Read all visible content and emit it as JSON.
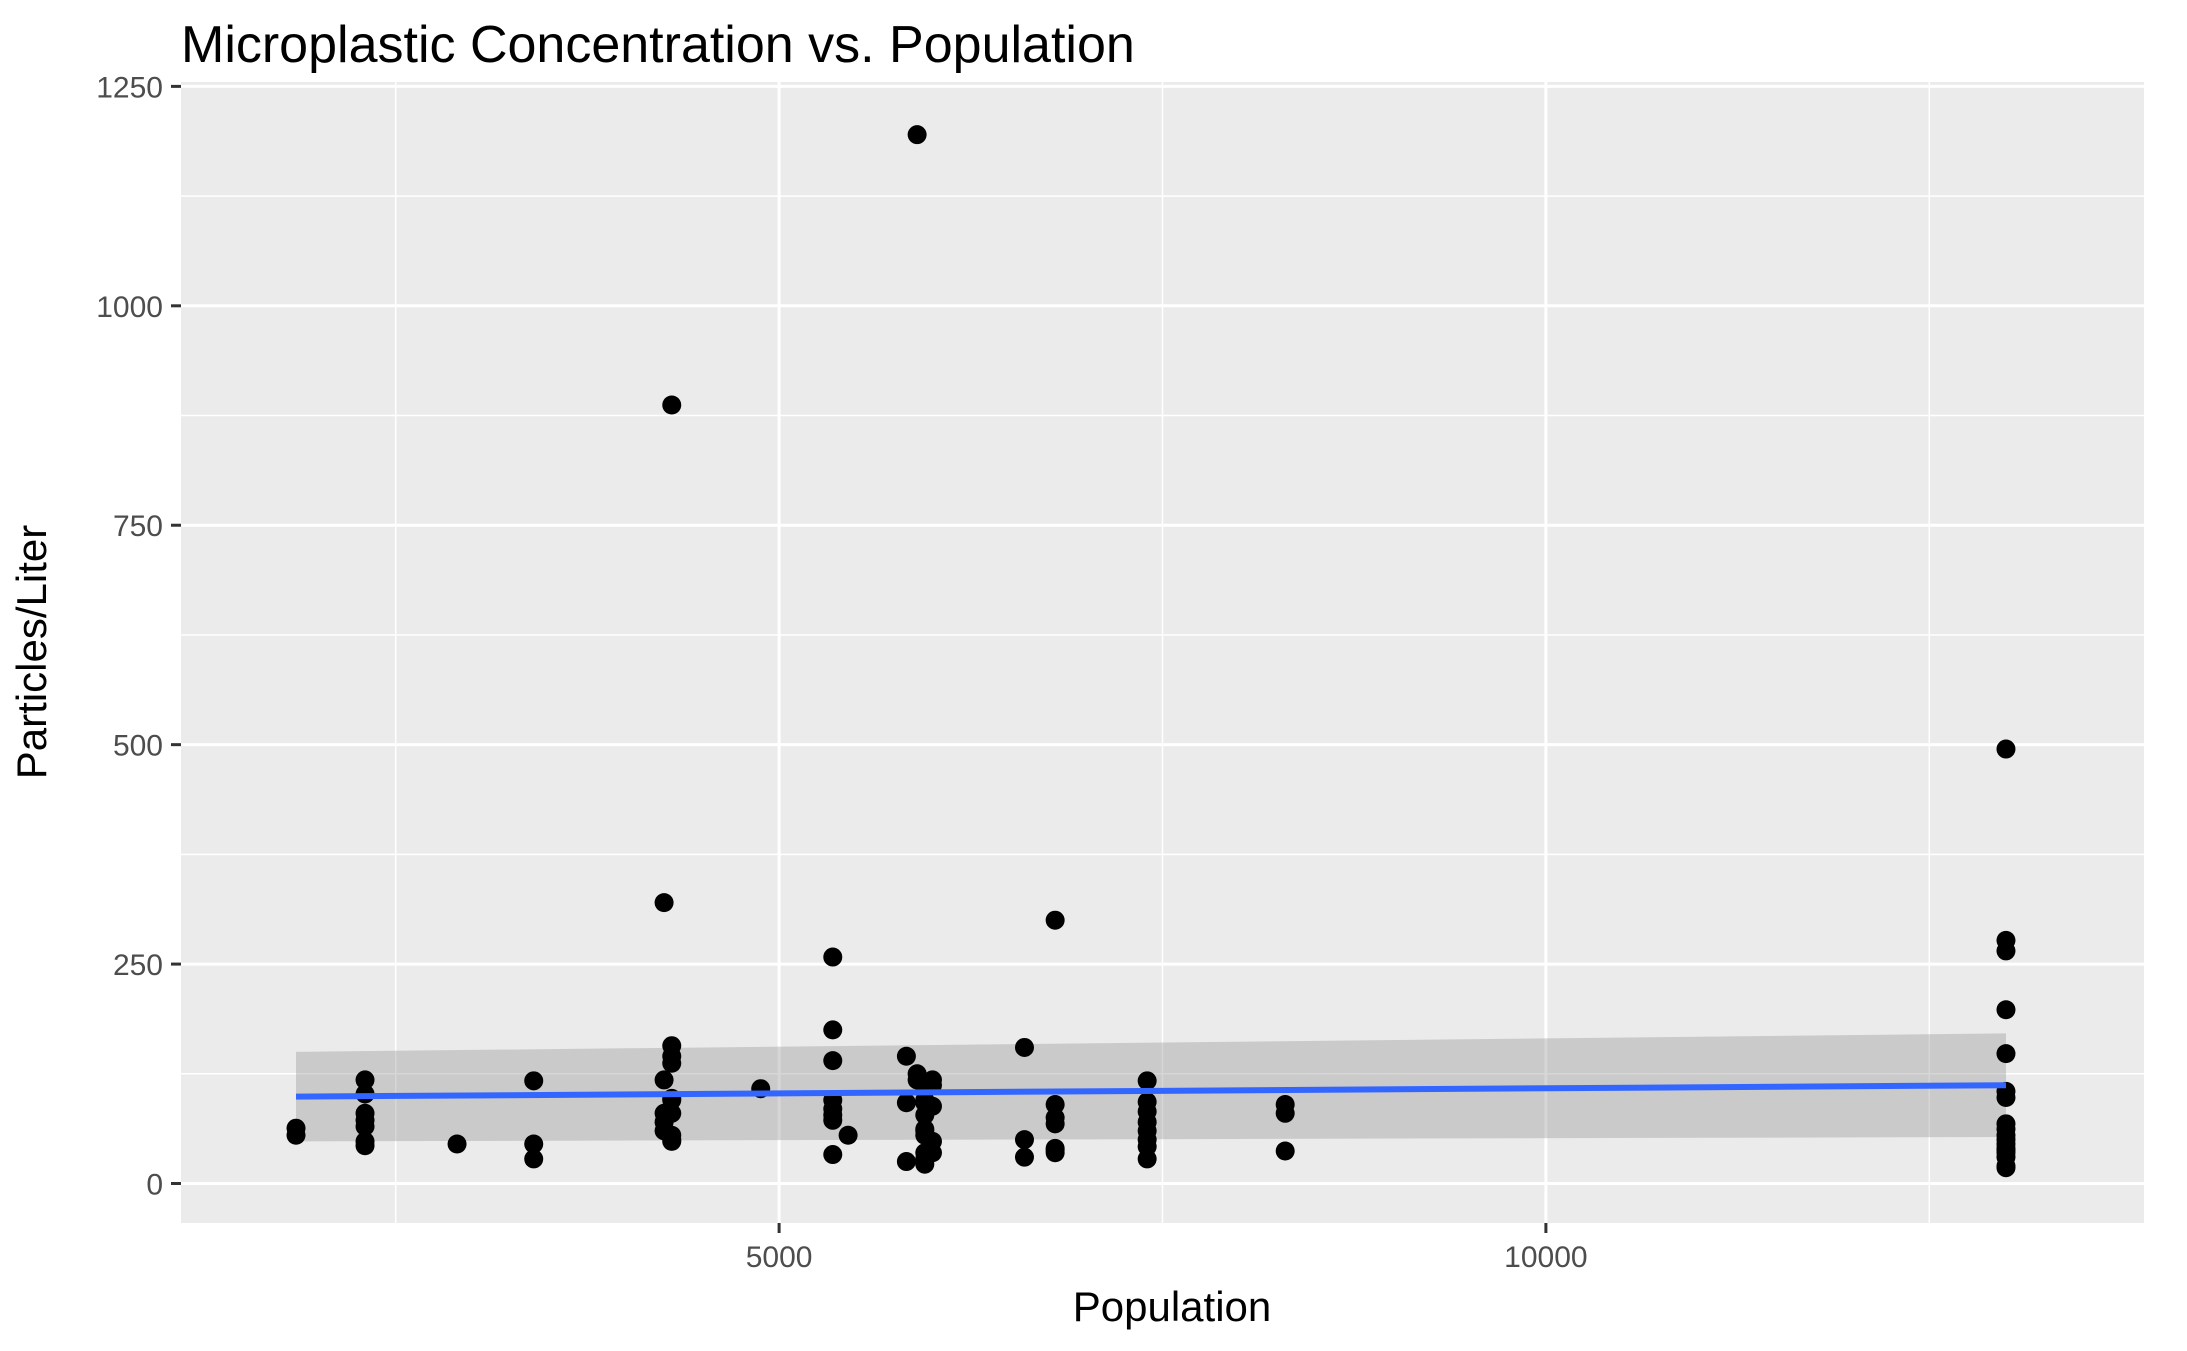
{
  "chart_data": {
    "type": "scatter",
    "title": "Microplastic Concentration vs. Population",
    "xlabel": "Population",
    "ylabel": "Particles/Liter",
    "xlim": [
      1100,
      13900
    ],
    "ylim": [
      -45,
      1255
    ],
    "x_ticks": [
      5000,
      10000
    ],
    "x_tick_labels": [
      "5000",
      "10000"
    ],
    "x_minor_ticks": [
      2500,
      7500,
      12500
    ],
    "y_ticks": [
      0,
      250,
      500,
      750,
      1000,
      1250
    ],
    "y_tick_labels": [
      "0",
      "250",
      "500",
      "750",
      "1000",
      "1250"
    ],
    "y_minor_ticks": [
      125,
      375,
      625,
      875,
      1125
    ],
    "grid": true,
    "colors": {
      "panel": "#ebebeb",
      "grid": "#ffffff",
      "points": "#000000",
      "trend_line": "#3366ff",
      "confidence_band": "#999999"
    },
    "series": [
      {
        "kind": "points",
        "x": [
          1850,
          1850,
          2300,
          2300,
          2300,
          2300,
          2300,
          2300,
          2300,
          2900,
          3400,
          3400,
          3400,
          4250,
          4250,
          4250,
          4250,
          4250,
          4300,
          4300,
          4300,
          4300,
          4300,
          4300,
          4300,
          4300,
          4300,
          4300,
          4880,
          5350,
          5350,
          5350,
          5350,
          5350,
          5350,
          5350,
          5350,
          5450,
          5830,
          5830,
          5830,
          5900,
          5900,
          5900,
          5950,
          5950,
          5950,
          5950,
          5950,
          5950,
          5950,
          5950,
          5950,
          5950,
          6000,
          6000,
          6000,
          6000,
          6000,
          6600,
          6600,
          6600,
          6800,
          6800,
          6800,
          6800,
          6800,
          6800,
          6800,
          7400,
          7400,
          7400,
          7400,
          7400,
          7400,
          7400,
          7400,
          8300,
          8300,
          8300,
          13000,
          13000,
          13000,
          13000,
          13000,
          13000,
          13000,
          13000,
          13000,
          13000,
          13000,
          13000,
          13000,
          13000,
          13000,
          13000,
          13000,
          13000
        ],
        "y": [
          63,
          55,
          118,
          102,
          80,
          72,
          65,
          48,
          43,
          45,
          117,
          45,
          28,
          320,
          118,
          80,
          70,
          60,
          887,
          157,
          145,
          137,
          97,
          55,
          48,
          50,
          80,
          95,
          108,
          258,
          175,
          140,
          95,
          85,
          78,
          72,
          33,
          55,
          145,
          92,
          25,
          1195,
          125,
          118,
          95,
          110,
          78,
          62,
          60,
          28,
          22,
          92,
          55,
          35,
          118,
          112,
          88,
          48,
          35,
          155,
          50,
          30,
          300,
          90,
          75,
          68,
          40,
          35,
          38,
          117,
          93,
          82,
          70,
          60,
          50,
          42,
          28,
          90,
          80,
          37,
          495,
          277,
          265,
          198,
          148,
          105,
          98,
          68,
          62,
          55,
          45,
          38,
          30,
          20,
          18,
          50,
          40,
          35
        ]
      },
      {
        "kind": "smooth",
        "x": [
          1850,
          13000
        ],
        "y": [
          99,
          112
        ],
        "ci_lower": [
          48,
          53
        ],
        "ci_upper": [
          150,
          171
        ]
      }
    ]
  }
}
